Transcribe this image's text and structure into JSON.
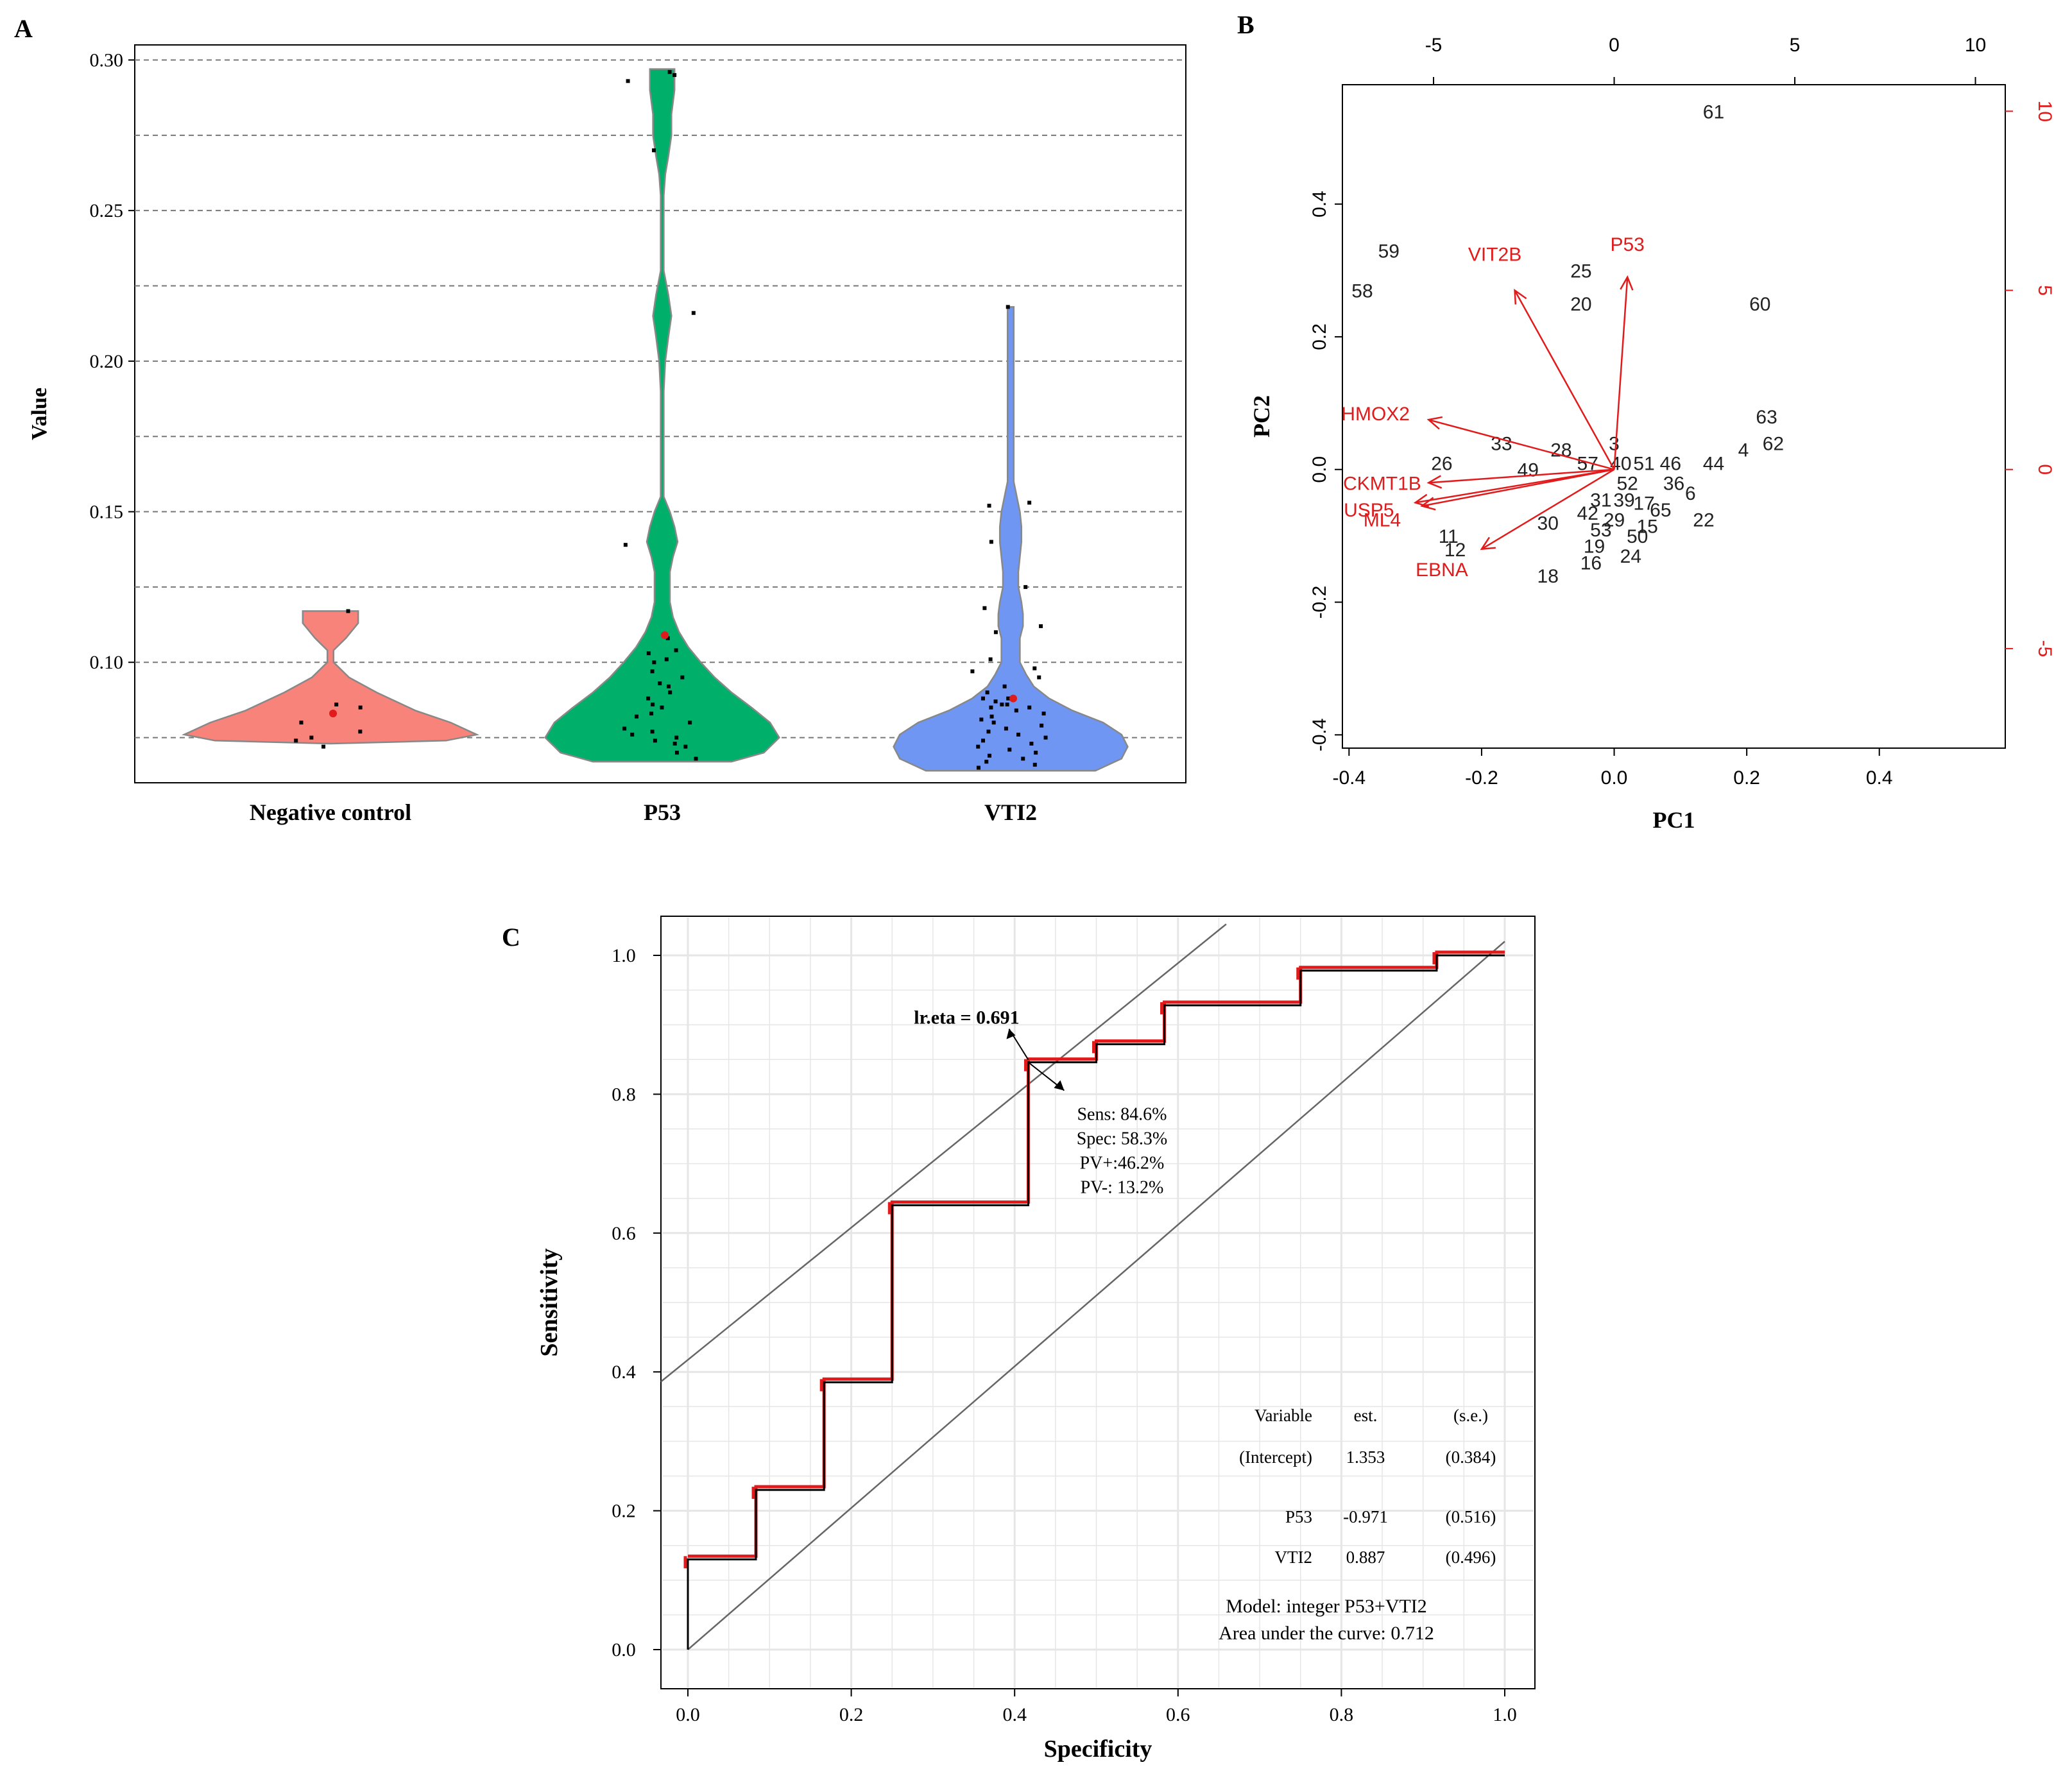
{
  "colors": {
    "negative": "#f8837a",
    "p53_violin": "#00b06a",
    "vti2": "#6f96f2",
    "red": "#e11b1b",
    "axis": "#000000",
    "grid_dash": "#777777",
    "bg_grid": "#e6e6e6"
  },
  "chart_data": [
    {
      "panel": "A",
      "type": "violin",
      "ylabel": "Value",
      "ylim": [
        0.06,
        0.305
      ],
      "yticks": [
        "0.10",
        "0.15",
        "0.20",
        "0.25",
        "0.30"
      ],
      "categories": [
        "Negative control",
        "P53",
        "VTI2"
      ],
      "violins": [
        {
          "name": "Negative control",
          "color_key": "negative",
          "mean": 0.083,
          "profile": [
            [
              0.073,
              0.0
            ],
            [
              0.074,
              0.75
            ],
            [
              0.076,
              0.95
            ],
            [
              0.08,
              0.78
            ],
            [
              0.084,
              0.55
            ],
            [
              0.09,
              0.3
            ],
            [
              0.095,
              0.12
            ],
            [
              0.1,
              0.02
            ],
            [
              0.104,
              0.02
            ],
            [
              0.108,
              0.1
            ],
            [
              0.113,
              0.18
            ],
            [
              0.117,
              0.18
            ],
            [
              0.117,
              0.0
            ]
          ],
          "points": [
            0.117,
            0.086,
            0.085,
            0.083,
            0.08,
            0.077,
            0.075,
            0.074,
            0.072
          ]
        },
        {
          "name": "P53",
          "color_key": "p53_violin",
          "mean": 0.109,
          "profile": [
            [
              0.067,
              0.0
            ],
            [
              0.067,
              0.45
            ],
            [
              0.07,
              0.66
            ],
            [
              0.075,
              0.76
            ],
            [
              0.08,
              0.7
            ],
            [
              0.085,
              0.58
            ],
            [
              0.09,
              0.45
            ],
            [
              0.095,
              0.34
            ],
            [
              0.1,
              0.25
            ],
            [
              0.105,
              0.17
            ],
            [
              0.11,
              0.11
            ],
            [
              0.115,
              0.07
            ],
            [
              0.12,
              0.05
            ],
            [
              0.125,
              0.05
            ],
            [
              0.13,
              0.05
            ],
            [
              0.135,
              0.07
            ],
            [
              0.14,
              0.1
            ],
            [
              0.145,
              0.08
            ],
            [
              0.15,
              0.05
            ],
            [
              0.155,
              0.01
            ],
            [
              0.165,
              0.01
            ],
            [
              0.175,
              0.01
            ],
            [
              0.19,
              0.01
            ],
            [
              0.2,
              0.02
            ],
            [
              0.208,
              0.04
            ],
            [
              0.215,
              0.06
            ],
            [
              0.222,
              0.04
            ],
            [
              0.23,
              0.01
            ],
            [
              0.245,
              0.01
            ],
            [
              0.255,
              0.01
            ],
            [
              0.262,
              0.02
            ],
            [
              0.268,
              0.04
            ],
            [
              0.275,
              0.06
            ],
            [
              0.282,
              0.06
            ],
            [
              0.29,
              0.08
            ],
            [
              0.297,
              0.08
            ],
            [
              0.297,
              0.0
            ]
          ],
          "points": [
            0.296,
            0.295,
            0.293,
            0.27,
            0.216,
            0.139,
            0.108,
            0.104,
            0.103,
            0.101,
            0.1,
            0.097,
            0.095,
            0.093,
            0.092,
            0.09,
            0.088,
            0.086,
            0.085,
            0.083,
            0.082,
            0.08,
            0.078,
            0.077,
            0.076,
            0.075,
            0.074,
            0.073,
            0.072,
            0.07,
            0.068
          ]
        },
        {
          "name": "VTI2",
          "color_key": "vti2",
          "mean": 0.088,
          "profile": [
            [
              0.064,
              0.0
            ],
            [
              0.064,
              0.55
            ],
            [
              0.068,
              0.72
            ],
            [
              0.072,
              0.76
            ],
            [
              0.076,
              0.72
            ],
            [
              0.08,
              0.6
            ],
            [
              0.084,
              0.4
            ],
            [
              0.088,
              0.25
            ],
            [
              0.092,
              0.15
            ],
            [
              0.096,
              0.1
            ],
            [
              0.1,
              0.06
            ],
            [
              0.104,
              0.06
            ],
            [
              0.108,
              0.06
            ],
            [
              0.112,
              0.08
            ],
            [
              0.116,
              0.08
            ],
            [
              0.12,
              0.07
            ],
            [
              0.125,
              0.05
            ],
            [
              0.13,
              0.05
            ],
            [
              0.135,
              0.06
            ],
            [
              0.14,
              0.07
            ],
            [
              0.145,
              0.07
            ],
            [
              0.15,
              0.06
            ],
            [
              0.155,
              0.04
            ],
            [
              0.16,
              0.02
            ],
            [
              0.17,
              0.02
            ],
            [
              0.18,
              0.02
            ],
            [
              0.19,
              0.02
            ],
            [
              0.2,
              0.02
            ],
            [
              0.21,
              0.02
            ],
            [
              0.218,
              0.02
            ],
            [
              0.218,
              0.0
            ]
          ],
          "points": [
            0.218,
            0.153,
            0.152,
            0.14,
            0.125,
            0.118,
            0.112,
            0.11,
            0.101,
            0.098,
            0.097,
            0.095,
            0.092,
            0.09,
            0.088,
            0.088,
            0.087,
            0.086,
            0.086,
            0.085,
            0.085,
            0.084,
            0.083,
            0.082,
            0.081,
            0.08,
            0.079,
            0.078,
            0.077,
            0.076,
            0.075,
            0.074,
            0.073,
            0.072,
            0.071,
            0.07,
            0.069,
            0.068,
            0.067,
            0.066,
            0.065
          ]
        }
      ]
    },
    {
      "panel": "B",
      "type": "biplot",
      "xlabel": "PC1",
      "ylabel": "PC2",
      "xlim": [
        -0.41,
        0.59
      ],
      "ylim": [
        -0.42,
        0.58
      ],
      "xticks": [
        "-0.4",
        "-0.2",
        "0.0",
        "0.2",
        "0.4"
      ],
      "yticks": [
        "-0.4",
        "-0.2",
        "0.0",
        "0.2",
        "0.4"
      ],
      "top_ticks": [
        "-5",
        "0",
        "5",
        "10"
      ],
      "right_ticks": [
        "-5",
        "0",
        "5",
        "10"
      ],
      "labels": [
        {
          "t": "61",
          "x": 0.15,
          "y": 0.54
        },
        {
          "t": "59",
          "x": -0.34,
          "y": 0.33
        },
        {
          "t": "58",
          "x": -0.38,
          "y": 0.27
        },
        {
          "t": "25",
          "x": -0.05,
          "y": 0.3
        },
        {
          "t": "20",
          "x": -0.05,
          "y": 0.25
        },
        {
          "t": "60",
          "x": 0.22,
          "y": 0.25
        },
        {
          "t": "63",
          "x": 0.23,
          "y": 0.08
        },
        {
          "t": "62",
          "x": 0.24,
          "y": 0.04
        },
        {
          "t": "4",
          "x": 0.195,
          "y": 0.03
        },
        {
          "t": "44",
          "x": 0.15,
          "y": 0.01
        },
        {
          "t": "33",
          "x": -0.17,
          "y": 0.04
        },
        {
          "t": "28",
          "x": -0.08,
          "y": 0.03
        },
        {
          "t": "3",
          "x": 0.0,
          "y": 0.04
        },
        {
          "t": "26",
          "x": -0.26,
          "y": 0.01
        },
        {
          "t": "49",
          "x": -0.13,
          "y": 0.0
        },
        {
          "t": "57",
          "x": -0.04,
          "y": 0.01
        },
        {
          "t": "40",
          "x": 0.01,
          "y": 0.01
        },
        {
          "t": "51",
          "x": 0.045,
          "y": 0.01
        },
        {
          "t": "46",
          "x": 0.085,
          "y": 0.01
        },
        {
          "t": "11",
          "x": -0.25,
          "y": -0.1
        },
        {
          "t": "12",
          "x": -0.24,
          "y": -0.12
        },
        {
          "t": "30",
          "x": -0.1,
          "y": -0.08
        },
        {
          "t": "22",
          "x": 0.135,
          "y": -0.075
        },
        {
          "t": "65",
          "x": 0.07,
          "y": -0.06
        },
        {
          "t": "18",
          "x": -0.1,
          "y": -0.16
        },
        {
          "t": "16",
          "x": -0.035,
          "y": -0.14
        },
        {
          "t": "19",
          "x": -0.03,
          "y": -0.115
        },
        {
          "t": "24",
          "x": 0.025,
          "y": -0.13
        },
        {
          "t": "50",
          "x": 0.035,
          "y": -0.1
        },
        {
          "t": "15",
          "x": 0.05,
          "y": -0.085
        },
        {
          "t": "6",
          "x": 0.115,
          "y": -0.035
        },
        {
          "t": "52",
          "x": 0.02,
          "y": -0.02
        },
        {
          "t": "31",
          "x": -0.02,
          "y": -0.045
        },
        {
          "t": "42",
          "x": -0.04,
          "y": -0.065
        },
        {
          "t": "29",
          "x": 0.0,
          "y": -0.075
        },
        {
          "t": "39",
          "x": 0.015,
          "y": -0.045
        },
        {
          "t": "17",
          "x": 0.045,
          "y": -0.05
        },
        {
          "t": "53",
          "x": -0.02,
          "y": -0.09
        },
        {
          "t": "36",
          "x": 0.09,
          "y": -0.02
        }
      ],
      "arrows": [
        {
          "name": "P53",
          "x": 0.02,
          "y": 0.29,
          "lx": 0.02,
          "ly": 0.34
        },
        {
          "name": "VIT2B",
          "x": -0.15,
          "y": 0.27,
          "lx": -0.18,
          "ly": 0.325
        },
        {
          "name": "HMOX2",
          "x": -0.28,
          "y": 0.075,
          "lx": -0.36,
          "ly": 0.085
        },
        {
          "name": "CKMT1B",
          "x": -0.28,
          "y": -0.02,
          "lx": -0.35,
          "ly": -0.02
        },
        {
          "name": "USP5",
          "x": -0.3,
          "y": -0.05,
          "lx": -0.37,
          "ly": -0.06
        },
        {
          "name": "ML4",
          "x": -0.29,
          "y": -0.055,
          "lx": -0.35,
          "ly": -0.075
        },
        {
          "name": "EBNA",
          "x": -0.2,
          "y": -0.12,
          "lx": -0.26,
          "ly": -0.15
        }
      ]
    },
    {
      "panel": "C",
      "type": "roc",
      "xlabel": "Specificity",
      "ylabel": "Sensitivity",
      "xticks": [
        "0.0",
        "0.2",
        "0.4",
        "0.6",
        "0.8",
        "1.0"
      ],
      "yticks": [
        "0.0",
        "0.2",
        "0.4",
        "0.6",
        "0.8",
        "1.0"
      ],
      "roc_points": [
        [
          0,
          0
        ],
        [
          0,
          0.13
        ],
        [
          0.0833,
          0.13
        ],
        [
          0.0833,
          0.23
        ],
        [
          0.1667,
          0.23
        ],
        [
          0.1667,
          0.385
        ],
        [
          0.25,
          0.385
        ],
        [
          0.25,
          0.64
        ],
        [
          0.4167,
          0.64
        ],
        [
          0.4167,
          0.846
        ],
        [
          0.5,
          0.846
        ],
        [
          0.5,
          0.872
        ],
        [
          0.5833,
          0.872
        ],
        [
          0.5833,
          0.928
        ],
        [
          0.75,
          0.928
        ],
        [
          0.75,
          0.978
        ],
        [
          0.9167,
          0.978
        ],
        [
          0.9167,
          1.0
        ],
        [
          1.0,
          1.0
        ]
      ],
      "cutoff_point": [
        0.4167,
        0.846
      ],
      "cutoff_label": "lr.eta = 0.691",
      "cutoff_stats": [
        "Sens: 84.6%",
        "Spec: 58.3%",
        "PV+:46.2%",
        "PV-: 13.2%"
      ],
      "auc": 0.712,
      "table": {
        "header": [
          "Variable",
          "est.",
          "(s.e.)"
        ],
        "rows": [
          [
            "(Intercept)",
            "1.353",
            "(0.384)"
          ],
          [
            "P53",
            "-0.971",
            "(0.516)"
          ],
          [
            "VTI2",
            "0.887",
            "(0.496)"
          ]
        ]
      },
      "model_text": "Model: integer P53+VTI2",
      "auc_text": "Area under the curve: 0.712"
    }
  ],
  "panels": {
    "a": {
      "label": "A"
    },
    "b": {
      "label": "B"
    },
    "c": {
      "label": "C"
    }
  }
}
